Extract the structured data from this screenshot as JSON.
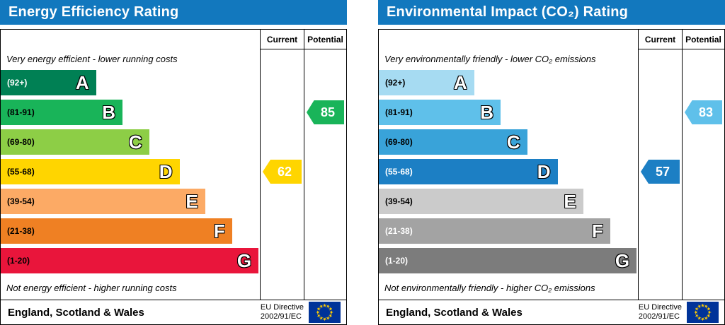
{
  "charts": [
    {
      "title": "Energy Efficiency Rating",
      "header_bg": "#1278be",
      "columns": {
        "current": "Current",
        "potential": "Potential"
      },
      "caption_top": "Very energy efficient - lower running costs",
      "caption_bottom": "Not energy efficient - higher running costs",
      "bands": [
        {
          "letter": "A",
          "range": "(92+)",
          "color": "#008054",
          "text_color": "#ffffff"
        },
        {
          "letter": "B",
          "range": "(81-91)",
          "color": "#19b459",
          "text_color": "#000000"
        },
        {
          "letter": "C",
          "range": "(69-80)",
          "color": "#8dce46",
          "text_color": "#000000"
        },
        {
          "letter": "D",
          "range": "(55-68)",
          "color": "#ffd500",
          "text_color": "#000000"
        },
        {
          "letter": "E",
          "range": "(39-54)",
          "color": "#fcaa65",
          "text_color": "#000000"
        },
        {
          "letter": "F",
          "range": "(21-38)",
          "color": "#ef8023",
          "text_color": "#000000"
        },
        {
          "letter": "G",
          "range": "(1-20)",
          "color": "#e9153b",
          "text_color": "#000000"
        }
      ],
      "current": {
        "value": "62",
        "color": "#ffd500",
        "band_index": 3
      },
      "potential": {
        "value": "85",
        "color": "#19b459",
        "band_index": 1
      },
      "footer": {
        "region": "England, Scotland & Wales",
        "directive_line1": "EU Directive",
        "directive_line2": "2002/91/EC"
      }
    },
    {
      "title": "Environmental Impact (CO₂) Rating",
      "header_bg": "#1278be",
      "columns": {
        "current": "Current",
        "potential": "Potential"
      },
      "caption_top": "Very environmentally friendly - lower CO₂ emissions",
      "caption_bottom": "Not environmentally friendly - higher CO₂ emissions",
      "bands": [
        {
          "letter": "A",
          "range": "(92+)",
          "color": "#a6dbf2",
          "text_color": "#000000"
        },
        {
          "letter": "B",
          "range": "(81-91)",
          "color": "#5fc0ea",
          "text_color": "#000000"
        },
        {
          "letter": "C",
          "range": "(69-80)",
          "color": "#39a3d9",
          "text_color": "#000000"
        },
        {
          "letter": "D",
          "range": "(55-68)",
          "color": "#1c7fc4",
          "text_color": "#ffffff"
        },
        {
          "letter": "E",
          "range": "(39-54)",
          "color": "#cbcbcb",
          "text_color": "#000000"
        },
        {
          "letter": "F",
          "range": "(21-38)",
          "color": "#a3a3a3",
          "text_color": "#ffffff"
        },
        {
          "letter": "G",
          "range": "(1-20)",
          "color": "#7c7c7c",
          "text_color": "#ffffff"
        }
      ],
      "current": {
        "value": "57",
        "color": "#1c7fc4",
        "band_index": 3
      },
      "potential": {
        "value": "83",
        "color": "#5fc0ea",
        "band_index": 1
      },
      "footer": {
        "region": "England, Scotland & Wales",
        "directive_line1": "EU Directive",
        "directive_line2": "2002/91/EC"
      }
    }
  ],
  "chart_data": [
    {
      "type": "bar",
      "title": "Energy Efficiency Rating",
      "categories": [
        "A (92+)",
        "B (81-91)",
        "C (69-80)",
        "D (55-68)",
        "E (39-54)",
        "F (21-38)",
        "G (1-20)"
      ],
      "series": [
        {
          "name": "Current",
          "value": 62,
          "band": "D"
        },
        {
          "name": "Potential",
          "value": 85,
          "band": "B"
        }
      ],
      "scale": [
        1,
        100
      ],
      "footer": "England, Scotland & Wales — EU Directive 2002/91/EC"
    },
    {
      "type": "bar",
      "title": "Environmental Impact (CO₂) Rating",
      "categories": [
        "A (92+)",
        "B (81-91)",
        "C (69-80)",
        "D (55-68)",
        "E (39-54)",
        "F (21-38)",
        "G (1-20)"
      ],
      "series": [
        {
          "name": "Current",
          "value": 57,
          "band": "D"
        },
        {
          "name": "Potential",
          "value": 83,
          "band": "B"
        }
      ],
      "scale": [
        1,
        100
      ],
      "footer": "England, Scotland & Wales — EU Directive 2002/91/EC"
    }
  ]
}
